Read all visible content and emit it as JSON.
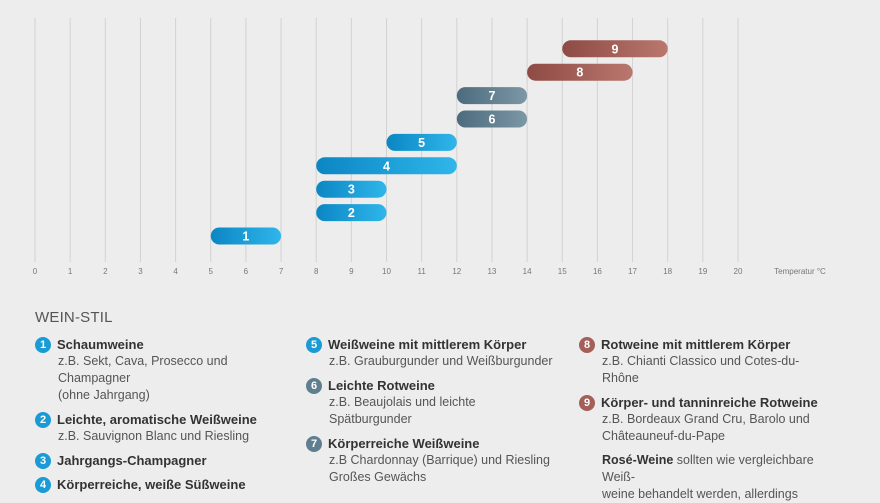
{
  "chart_data": {
    "type": "range-bar",
    "xlabel": "Temperatur °C",
    "xlim": [
      0,
      20
    ],
    "ticks": [
      0,
      1,
      2,
      3,
      4,
      5,
      6,
      7,
      8,
      9,
      10,
      11,
      12,
      13,
      14,
      15,
      16,
      17,
      18,
      19,
      20
    ],
    "bars": [
      {
        "label": "1",
        "start": 5,
        "end": 7
      },
      {
        "label": "2",
        "start": 8,
        "end": 10
      },
      {
        "label": "3",
        "start": 8,
        "end": 10
      },
      {
        "label": "4",
        "start": 8,
        "end": 12
      },
      {
        "label": "5",
        "start": 10,
        "end": 12
      },
      {
        "label": "6",
        "start": 12,
        "end": 14
      },
      {
        "label": "7",
        "start": 12,
        "end": 14
      },
      {
        "label": "8",
        "start": 14,
        "end": 17
      },
      {
        "label": "9",
        "start": 15,
        "end": 18
      }
    ],
    "colors": {
      "blue": "#1a9bd6",
      "slate": "#5f7f90",
      "red": "#a45f58"
    }
  },
  "legend": {
    "title": "WEIN-STIL",
    "items": [
      {
        "num": "1",
        "title": "Schaumweine",
        "desc": "z.B. Sekt, Cava, Prosecco und Champagner\n(ohne Jahrgang)",
        "color": "#1a9bd6"
      },
      {
        "num": "2",
        "title": "Leichte, aromatische Weißweine",
        "desc": "z.B. Sauvignon Blanc und Riesling",
        "color": "#1a9bd6"
      },
      {
        "num": "3",
        "title": "Jahrgangs-Champagner",
        "desc": "",
        "color": "#1a9bd6"
      },
      {
        "num": "4",
        "title": "Körperreiche, weiße Süßweine",
        "desc": "",
        "color": "#1a9bd6"
      },
      {
        "num": "5",
        "title": "Weißweine mit mittlerem Körper",
        "desc": "z.B. Grauburgunder und Weißburgunder",
        "color": "#1a9bd6"
      },
      {
        "num": "6",
        "title": "Leichte Rotweine",
        "desc": "z.B. Beaujolais und leichte Spätburgunder",
        "color": "#5f7f90"
      },
      {
        "num": "7",
        "title": "Körperreiche Weißweine",
        "desc": "z.B Chardonnay (Barrique) und Riesling\nGroßes Gewächs",
        "color": "#5f7f90"
      },
      {
        "num": "8",
        "title": "Rotweine mit mittlerem Körper",
        "desc": "z.B. Chianti Classico und Cotes-du-Rhône",
        "color": "#a45f58"
      },
      {
        "num": "9",
        "title": "Körper- und tanninreiche Rotweine",
        "desc": "z.B. Bordeaux Grand Cru, Barolo und\nChâteauneuf-du-Pape",
        "color": "#a45f58"
      }
    ],
    "rose_bold": "Rosé-Weine",
    "rose_text": " sollten wie vergleichbare Weiß-\nweine behandelt werden, allerdings"
  }
}
